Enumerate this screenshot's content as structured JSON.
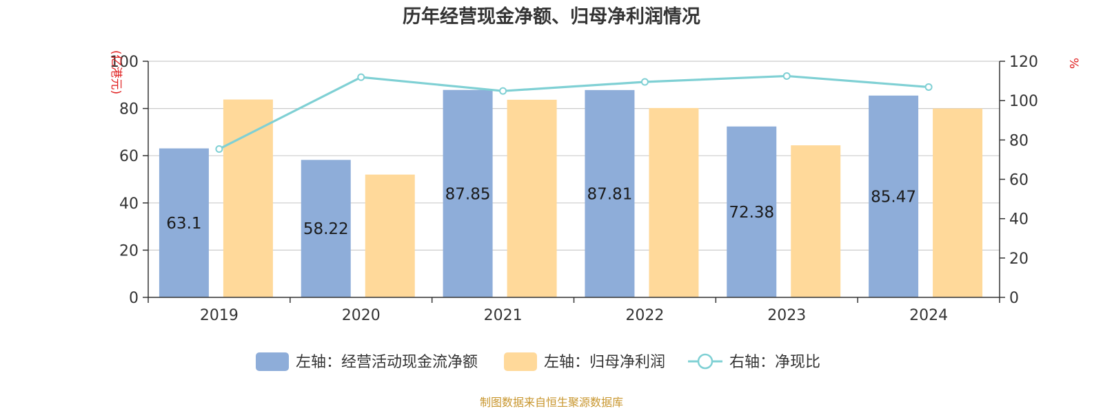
{
  "chart_data": {
    "type": "bar",
    "title": "历年经营现金净额、归母净利润情况",
    "categories": [
      "2019",
      "2020",
      "2021",
      "2022",
      "2023",
      "2024"
    ],
    "series": [
      {
        "name": "左轴：经营活动现金流净额",
        "axis": "left",
        "kind": "bar",
        "color": "#8eadd9",
        "values": [
          63.1,
          58.22,
          87.85,
          87.81,
          72.38,
          85.47
        ],
        "data_labels_shown": true
      },
      {
        "name": "左轴：归母净利润",
        "axis": "left",
        "kind": "bar",
        "color": "#ffd99a",
        "values": [
          83.8,
          52.0,
          83.7,
          80.2,
          64.4,
          80.0
        ],
        "data_labels_shown": false
      },
      {
        "name": "右轴：净现比",
        "axis": "right",
        "kind": "line",
        "color": "#7fd0d4",
        "values": [
          75.4,
          111.9,
          104.9,
          109.5,
          112.5,
          106.9
        ],
        "data_labels_shown": false
      }
    ],
    "left_axis": {
      "unit": "(亿港元)",
      "ylim": [
        0,
        100
      ],
      "ticks": [
        "0",
        "20",
        "40",
        "60",
        "80",
        "100"
      ],
      "unit_color": "#e02020"
    },
    "right_axis": {
      "unit": "%",
      "ylim": [
        0,
        120
      ],
      "ticks": [
        "0",
        "20",
        "40",
        "60",
        "80",
        "100",
        "120"
      ],
      "unit_color": "#e02020"
    },
    "grid": true,
    "legend_position": "bottom",
    "source": "制图数据来自恒生聚源数据库",
    "source_color": "#c8962e"
  }
}
